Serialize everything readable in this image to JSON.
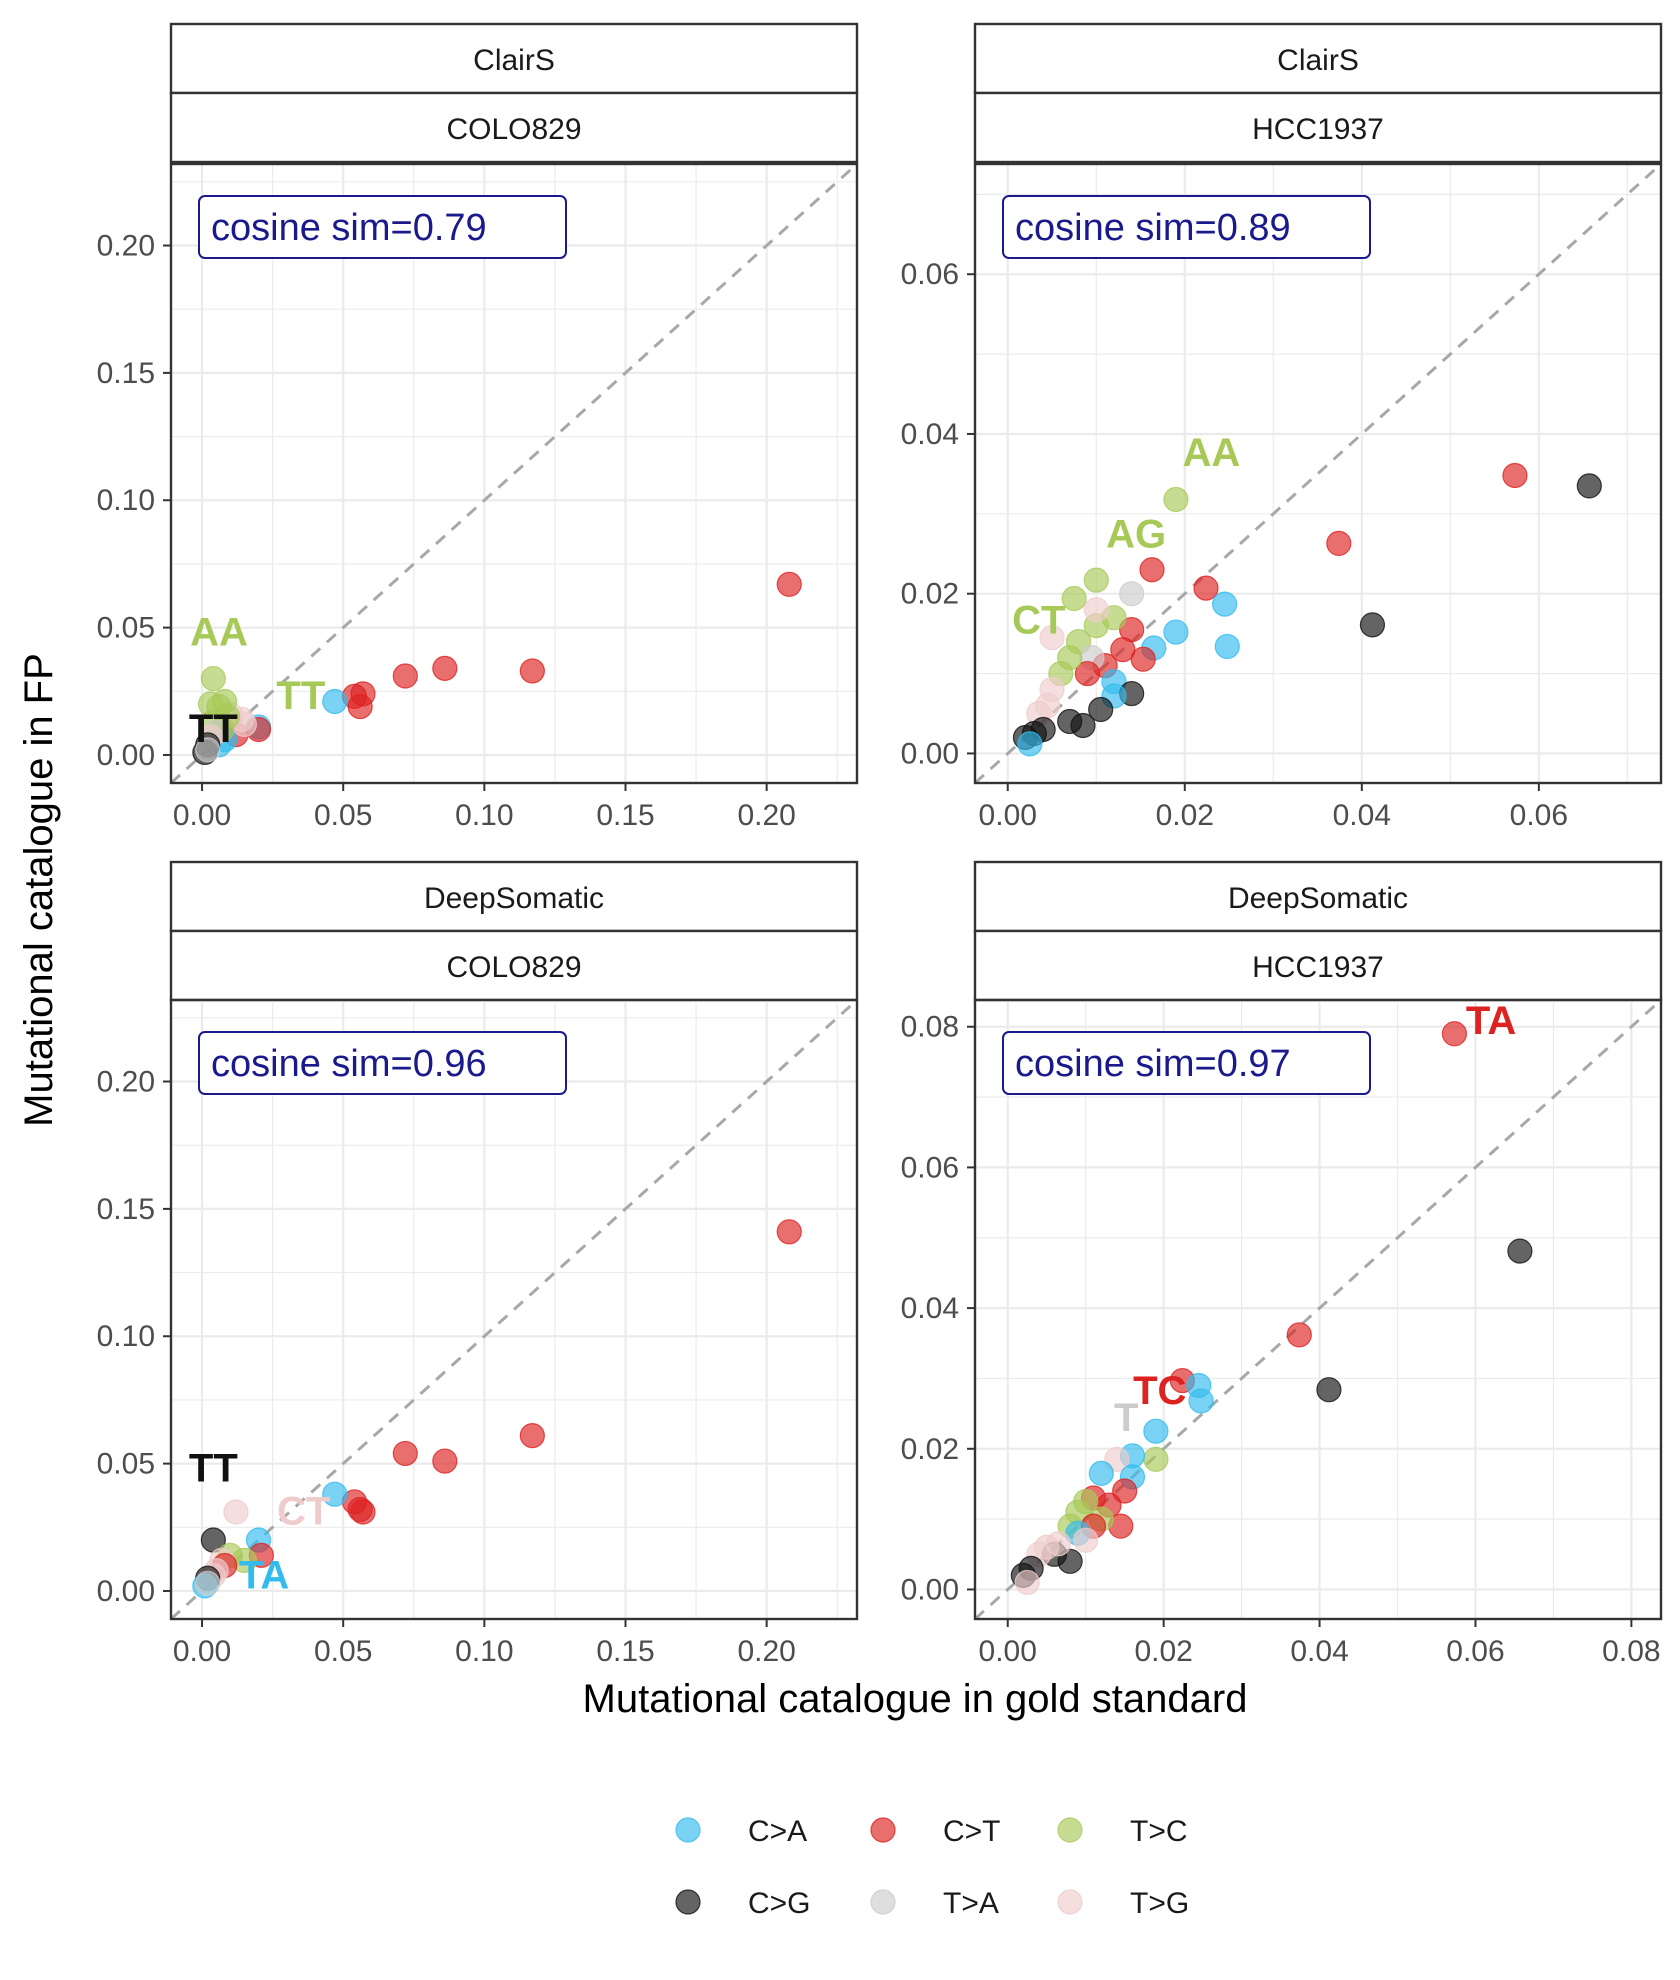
{
  "figure": {
    "xlabel": "Mutational catalogue in gold standard",
    "ylabel": "Mutational catalogue in FP"
  },
  "legend": {
    "position": "bottom",
    "items": [
      {
        "label": "C>A",
        "color": "#33BBEE"
      },
      {
        "label": "C>T",
        "color": "#DD2222"
      },
      {
        "label": "T>C",
        "color": "#A7C957"
      },
      {
        "label": "C>G",
        "color": "#111111"
      },
      {
        "label": "T>A",
        "color": "#CCCCCC"
      },
      {
        "label": "T>G",
        "color": "#EECCCC"
      }
    ]
  },
  "chart_data": [
    {
      "type": "scatter",
      "strip_top": "ClairS",
      "strip_bottom": "COLO829",
      "annotation": "cosine sim=0.79",
      "xlim": [
        -0.011,
        0.232
      ],
      "ylim": [
        -0.011,
        0.232
      ],
      "x_ticks": [
        0.0,
        0.05,
        0.1,
        0.15,
        0.2
      ],
      "x_tick_labels": [
        "0.00",
        "0.05",
        "0.10",
        "0.15",
        "0.20"
      ],
      "y_ticks": [
        0.0,
        0.05,
        0.1,
        0.15,
        0.2
      ],
      "y_tick_labels": [
        "0.00",
        "0.05",
        "0.10",
        "0.15",
        "0.20"
      ],
      "grid": true,
      "reference_line": "y = x",
      "points": [
        {
          "x": 0.208,
          "y": 0.067,
          "type": "C>T"
        },
        {
          "x": 0.117,
          "y": 0.033,
          "type": "C>T"
        },
        {
          "x": 0.086,
          "y": 0.034,
          "type": "C>T"
        },
        {
          "x": 0.072,
          "y": 0.031,
          "type": "C>T"
        },
        {
          "x": 0.057,
          "y": 0.024,
          "type": "C>T"
        },
        {
          "x": 0.056,
          "y": 0.019,
          "type": "C>T"
        },
        {
          "x": 0.054,
          "y": 0.023,
          "type": "C>T"
        },
        {
          "x": 0.047,
          "y": 0.021,
          "type": "C>A"
        },
        {
          "x": 0.02,
          "y": 0.011,
          "type": "C>A"
        },
        {
          "x": 0.02,
          "y": 0.01,
          "type": "C>T"
        },
        {
          "x": 0.012,
          "y": 0.008,
          "type": "C>T"
        },
        {
          "x": 0.015,
          "y": 0.012,
          "type": "T>G"
        },
        {
          "x": 0.014,
          "y": 0.014,
          "type": "T>G"
        },
        {
          "x": 0.01,
          "y": 0.016,
          "type": "T>G"
        },
        {
          "x": 0.008,
          "y": 0.006,
          "type": "C>A"
        },
        {
          "x": 0.006,
          "y": 0.004,
          "type": "C>A"
        },
        {
          "x": 0.004,
          "y": 0.03,
          "type": "T>C"
        },
        {
          "x": 0.008,
          "y": 0.021,
          "type": "T>C"
        },
        {
          "x": 0.003,
          "y": 0.02,
          "type": "T>C"
        },
        {
          "x": 0.006,
          "y": 0.019,
          "type": "T>C"
        },
        {
          "x": 0.009,
          "y": 0.015,
          "type": "T>C"
        },
        {
          "x": 0.004,
          "y": 0.013,
          "type": "T>C"
        },
        {
          "x": 0.007,
          "y": 0.01,
          "type": "T>C"
        },
        {
          "x": 0.005,
          "y": 0.009,
          "type": "T>A"
        },
        {
          "x": 0.003,
          "y": 0.007,
          "type": "T>G"
        },
        {
          "x": 0.002,
          "y": 0.004,
          "type": "C>G"
        },
        {
          "x": 0.001,
          "y": 0.001,
          "type": "C>G"
        },
        {
          "x": 0.002,
          "y": 0.002,
          "type": "T>A"
        }
      ],
      "labels": [
        {
          "text": "AA",
          "type": "T>C",
          "x": 0.006,
          "y": 0.043
        },
        {
          "text": "TT",
          "type": "T>C",
          "x": 0.035,
          "y": 0.018
        },
        {
          "text": "TT",
          "type": "C>G",
          "x": 0.004,
          "y": 0.005
        }
      ]
    },
    {
      "type": "scatter",
      "strip_top": "ClairS",
      "strip_bottom": "HCC1937",
      "annotation": "cosine sim=0.89",
      "xlim": [
        -0.0037,
        0.0738
      ],
      "ylim": [
        -0.0037,
        0.0738
      ],
      "x_ticks": [
        0.0,
        0.02,
        0.04,
        0.06
      ],
      "x_tick_labels": [
        "0.00",
        "0.02",
        "0.04",
        "0.06"
      ],
      "y_ticks": [
        0.0,
        0.02,
        0.04,
        0.06
      ],
      "y_tick_labels": [
        "0.00",
        "0.02",
        "0.04",
        "0.06"
      ],
      "grid": true,
      "reference_line": "y = x",
      "points": [
        {
          "x": 0.0657,
          "y": 0.0335,
          "type": "C>G"
        },
        {
          "x": 0.0573,
          "y": 0.0348,
          "type": "C>T"
        },
        {
          "x": 0.0374,
          "y": 0.0263,
          "type": "C>T"
        },
        {
          "x": 0.0412,
          "y": 0.0161,
          "type": "C>G"
        },
        {
          "x": 0.0224,
          "y": 0.0207,
          "type": "C>T"
        },
        {
          "x": 0.0245,
          "y": 0.0187,
          "type": "C>A"
        },
        {
          "x": 0.0248,
          "y": 0.0134,
          "type": "C>A"
        },
        {
          "x": 0.019,
          "y": 0.0152,
          "type": "C>A"
        },
        {
          "x": 0.0163,
          "y": 0.023,
          "type": "C>T"
        },
        {
          "x": 0.019,
          "y": 0.0318,
          "type": "T>C"
        },
        {
          "x": 0.014,
          "y": 0.02,
          "type": "T>A"
        },
        {
          "x": 0.01,
          "y": 0.0217,
          "type": "T>C"
        },
        {
          "x": 0.0075,
          "y": 0.0194,
          "type": "T>C"
        },
        {
          "x": 0.0165,
          "y": 0.0132,
          "type": "C>A"
        },
        {
          "x": 0.0153,
          "y": 0.0118,
          "type": "C>T"
        },
        {
          "x": 0.014,
          "y": 0.0155,
          "type": "C>T"
        },
        {
          "x": 0.012,
          "y": 0.017,
          "type": "T>C"
        },
        {
          "x": 0.01,
          "y": 0.016,
          "type": "T>C"
        },
        {
          "x": 0.008,
          "y": 0.014,
          "type": "T>C"
        },
        {
          "x": 0.013,
          "y": 0.013,
          "type": "C>T"
        },
        {
          "x": 0.011,
          "y": 0.011,
          "type": "C>T"
        },
        {
          "x": 0.012,
          "y": 0.009,
          "type": "C>A"
        },
        {
          "x": 0.0095,
          "y": 0.012,
          "type": "T>A"
        },
        {
          "x": 0.009,
          "y": 0.01,
          "type": "C>T"
        },
        {
          "x": 0.007,
          "y": 0.012,
          "type": "T>C"
        },
        {
          "x": 0.006,
          "y": 0.01,
          "type": "T>C"
        },
        {
          "x": 0.014,
          "y": 0.0075,
          "type": "C>G"
        },
        {
          "x": 0.012,
          "y": 0.0072,
          "type": "C>A"
        },
        {
          "x": 0.0105,
          "y": 0.0055,
          "type": "C>G"
        },
        {
          "x": 0.0085,
          "y": 0.0035,
          "type": "C>G"
        },
        {
          "x": 0.007,
          "y": 0.004,
          "type": "C>G"
        },
        {
          "x": 0.005,
          "y": 0.008,
          "type": "T>G"
        },
        {
          "x": 0.0045,
          "y": 0.006,
          "type": "T>G"
        },
        {
          "x": 0.0035,
          "y": 0.005,
          "type": "T>G"
        },
        {
          "x": 0.004,
          "y": 0.003,
          "type": "C>G"
        },
        {
          "x": 0.003,
          "y": 0.0025,
          "type": "C>G"
        },
        {
          "x": 0.002,
          "y": 0.002,
          "type": "C>G"
        },
        {
          "x": 0.0025,
          "y": 0.0012,
          "type": "C>A"
        },
        {
          "x": 0.005,
          "y": 0.0145,
          "type": "T>G"
        },
        {
          "x": 0.01,
          "y": 0.018,
          "type": "T>G"
        }
      ],
      "labels": [
        {
          "text": "AA",
          "type": "T>C",
          "x": 0.023,
          "y": 0.036
        },
        {
          "text": "AG",
          "type": "T>C",
          "x": 0.0145,
          "y": 0.0258
        },
        {
          "text": "CT",
          "type": "T>C",
          "x": 0.0035,
          "y": 0.015
        }
      ]
    },
    {
      "type": "scatter",
      "strip_top": "DeepSomatic",
      "strip_bottom": "COLO829",
      "annotation": "cosine sim=0.96",
      "xlim": [
        -0.011,
        0.232
      ],
      "ylim": [
        -0.011,
        0.232
      ],
      "x_ticks": [
        0.0,
        0.05,
        0.1,
        0.15,
        0.2
      ],
      "x_tick_labels": [
        "0.00",
        "0.05",
        "0.10",
        "0.15",
        "0.20"
      ],
      "y_ticks": [
        0.0,
        0.05,
        0.1,
        0.15,
        0.2
      ],
      "y_tick_labels": [
        "0.00",
        "0.05",
        "0.10",
        "0.15",
        "0.20"
      ],
      "grid": true,
      "reference_line": "y = x",
      "points": [
        {
          "x": 0.208,
          "y": 0.141,
          "type": "C>T"
        },
        {
          "x": 0.117,
          "y": 0.061,
          "type": "C>T"
        },
        {
          "x": 0.086,
          "y": 0.051,
          "type": "C>T"
        },
        {
          "x": 0.072,
          "y": 0.054,
          "type": "C>T"
        },
        {
          "x": 0.057,
          "y": 0.031,
          "type": "C>T"
        },
        {
          "x": 0.056,
          "y": 0.032,
          "type": "C>T"
        },
        {
          "x": 0.054,
          "y": 0.035,
          "type": "C>T"
        },
        {
          "x": 0.047,
          "y": 0.038,
          "type": "C>A"
        },
        {
          "x": 0.02,
          "y": 0.02,
          "type": "C>A"
        },
        {
          "x": 0.021,
          "y": 0.014,
          "type": "C>T"
        },
        {
          "x": 0.012,
          "y": 0.031,
          "type": "T>G"
        },
        {
          "x": 0.004,
          "y": 0.02,
          "type": "C>G"
        },
        {
          "x": 0.01,
          "y": 0.014,
          "type": "T>C"
        },
        {
          "x": 0.015,
          "y": 0.012,
          "type": "T>C"
        },
        {
          "x": 0.007,
          "y": 0.012,
          "type": "T>G"
        },
        {
          "x": 0.008,
          "y": 0.01,
          "type": "C>T"
        },
        {
          "x": 0.005,
          "y": 0.008,
          "type": "T>G"
        },
        {
          "x": 0.004,
          "y": 0.006,
          "type": "T>G"
        },
        {
          "x": 0.002,
          "y": 0.005,
          "type": "C>G"
        },
        {
          "x": 0.001,
          "y": 0.002,
          "type": "C>A"
        },
        {
          "x": 0.002,
          "y": 0.003,
          "type": "T>A"
        }
      ],
      "labels": [
        {
          "text": "TT",
          "type": "C>G",
          "x": 0.004,
          "y": 0.043
        },
        {
          "text": "CT",
          "type": "T>G",
          "x": 0.036,
          "y": 0.026
        },
        {
          "text": "TA",
          "type": "C>A",
          "x": 0.022,
          "y": 0.001
        }
      ]
    },
    {
      "type": "scatter",
      "strip_top": "DeepSomatic",
      "strip_bottom": "HCC1937",
      "annotation": "cosine sim=0.97",
      "xlim": [
        -0.0042,
        0.0838
      ],
      "ylim": [
        -0.0042,
        0.0838
      ],
      "x_ticks": [
        0.0,
        0.02,
        0.04,
        0.06,
        0.08
      ],
      "x_tick_labels": [
        "0.00",
        "0.02",
        "0.04",
        "0.06",
        "0.08"
      ],
      "y_ticks": [
        0.0,
        0.02,
        0.04,
        0.06,
        0.08
      ],
      "y_tick_labels": [
        "0.00",
        "0.02",
        "0.04",
        "0.06",
        "0.08"
      ],
      "grid": true,
      "reference_line": "y = x",
      "points": [
        {
          "x": 0.0573,
          "y": 0.079,
          "type": "C>T"
        },
        {
          "x": 0.0657,
          "y": 0.0481,
          "type": "C>G"
        },
        {
          "x": 0.0374,
          "y": 0.0362,
          "type": "C>T"
        },
        {
          "x": 0.0412,
          "y": 0.0284,
          "type": "C>G"
        },
        {
          "x": 0.0224,
          "y": 0.0297,
          "type": "C>T"
        },
        {
          "x": 0.0245,
          "y": 0.029,
          "type": "C>A"
        },
        {
          "x": 0.0248,
          "y": 0.0268,
          "type": "C>A"
        },
        {
          "x": 0.019,
          "y": 0.0225,
          "type": "C>A"
        },
        {
          "x": 0.019,
          "y": 0.0185,
          "type": "T>C"
        },
        {
          "x": 0.016,
          "y": 0.019,
          "type": "C>A"
        },
        {
          "x": 0.014,
          "y": 0.0185,
          "type": "T>G"
        },
        {
          "x": 0.016,
          "y": 0.016,
          "type": "C>A"
        },
        {
          "x": 0.012,
          "y": 0.0165,
          "type": "C>A"
        },
        {
          "x": 0.015,
          "y": 0.014,
          "type": "C>T"
        },
        {
          "x": 0.013,
          "y": 0.012,
          "type": "C>T"
        },
        {
          "x": 0.0145,
          "y": 0.009,
          "type": "C>T"
        },
        {
          "x": 0.011,
          "y": 0.013,
          "type": "C>T"
        },
        {
          "x": 0.01,
          "y": 0.0125,
          "type": "T>C"
        },
        {
          "x": 0.009,
          "y": 0.011,
          "type": "T>C"
        },
        {
          "x": 0.012,
          "y": 0.01,
          "type": "T>C"
        },
        {
          "x": 0.008,
          "y": 0.009,
          "type": "T>C"
        },
        {
          "x": 0.011,
          "y": 0.009,
          "type": "C>T"
        },
        {
          "x": 0.009,
          "y": 0.008,
          "type": "C>A"
        },
        {
          "x": 0.01,
          "y": 0.007,
          "type": "T>G"
        },
        {
          "x": 0.008,
          "y": 0.004,
          "type": "C>G"
        },
        {
          "x": 0.006,
          "y": 0.005,
          "type": "C>G"
        },
        {
          "x": 0.005,
          "y": 0.006,
          "type": "T>G"
        },
        {
          "x": 0.004,
          "y": 0.005,
          "type": "T>G"
        },
        {
          "x": 0.003,
          "y": 0.003,
          "type": "C>G"
        },
        {
          "x": 0.002,
          "y": 0.002,
          "type": "C>G"
        },
        {
          "x": 0.0025,
          "y": 0.001,
          "type": "T>G"
        },
        {
          "x": 0.0065,
          "y": 0.0065,
          "type": "T>G"
        }
      ],
      "labels": [
        {
          "text": "TA",
          "type": "C>T",
          "x": 0.062,
          "y": 0.079
        },
        {
          "text": "TC",
          "type": "C>T",
          "x": 0.0195,
          "y": 0.0264
        },
        {
          "text": "T",
          "type": "T>A",
          "x": 0.0152,
          "y": 0.0225
        }
      ]
    }
  ]
}
